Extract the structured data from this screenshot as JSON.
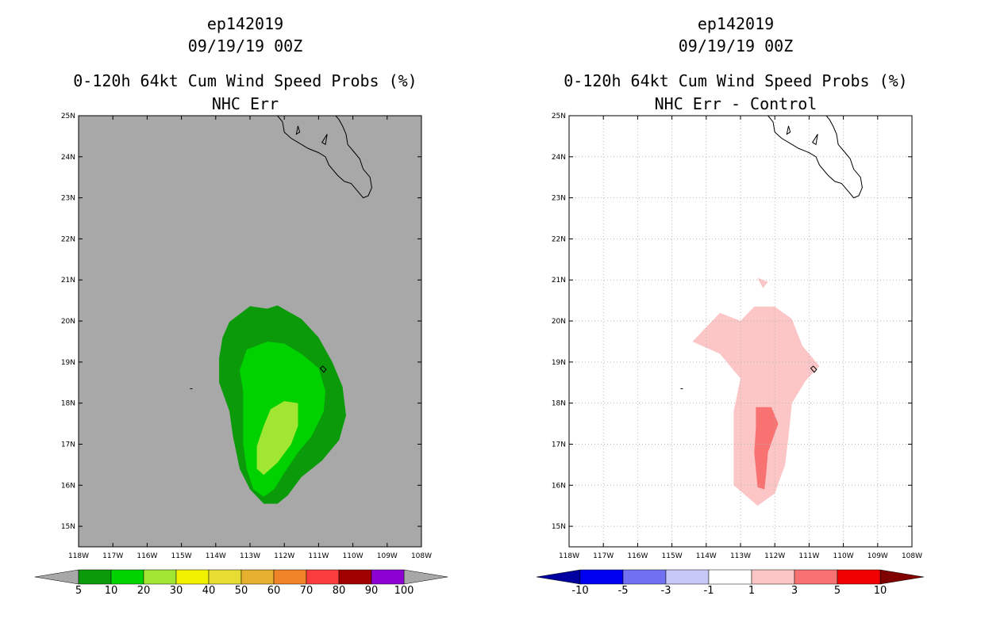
{
  "colors": {
    "ocean_left": "#a8a8a8",
    "green_dark": "#0a9a0a",
    "green_mid": "#00d200",
    "green_light": "#a0e632",
    "pink_light": "#fcc6c6",
    "pink_dark": "#f87272",
    "grid": "#b4b4b4"
  },
  "chart_data": [
    {
      "type": "contour-map",
      "storm": "ep142019",
      "date": "09/19/19 00Z",
      "title": "0-120h 64kt Cum Wind Speed Probs (%)",
      "subtitle": "NHC Err",
      "lon_range": [
        -118,
        -108
      ],
      "lat_range": [
        14.5,
        25
      ],
      "x_ticks": [
        "118W",
        "117W",
        "116W",
        "115W",
        "114W",
        "113W",
        "112W",
        "111W",
        "110W",
        "109W",
        "108W"
      ],
      "y_ticks": [
        "15N",
        "16N",
        "17N",
        "18N",
        "19N",
        "20N",
        "21N",
        "22N",
        "23N",
        "24N",
        "25N"
      ],
      "grid": false,
      "contours": [
        {
          "level": "5-10%",
          "color": "#0a9a0a",
          "polygon": [
            [
              -113.6,
              19.98
            ],
            [
              -113.0,
              20.36
            ],
            [
              -112.5,
              20.3
            ],
            [
              -112.2,
              20.38
            ],
            [
              -111.5,
              20.05
            ],
            [
              -111.0,
              19.6
            ],
            [
              -110.6,
              19.0
            ],
            [
              -110.3,
              18.4
            ],
            [
              -110.2,
              17.7
            ],
            [
              -110.4,
              17.1
            ],
            [
              -110.9,
              16.6
            ],
            [
              -111.5,
              16.2
            ],
            [
              -111.9,
              15.75
            ],
            [
              -112.2,
              15.55
            ],
            [
              -112.6,
              15.55
            ],
            [
              -113.0,
              15.9
            ],
            [
              -113.3,
              16.4
            ],
            [
              -113.5,
              17.2
            ],
            [
              -113.6,
              17.8
            ],
            [
              -113.9,
              18.5
            ],
            [
              -113.9,
              19.1
            ],
            [
              -113.8,
              19.6
            ]
          ]
        },
        {
          "level": "10-20%",
          "color": "#00d200",
          "polygon": [
            [
              -113.1,
              19.3
            ],
            [
              -112.5,
              19.5
            ],
            [
              -112.0,
              19.45
            ],
            [
              -111.5,
              19.2
            ],
            [
              -111.0,
              18.85
            ],
            [
              -110.8,
              18.3
            ],
            [
              -110.85,
              17.8
            ],
            [
              -111.2,
              17.2
            ],
            [
              -111.6,
              16.8
            ],
            [
              -112.0,
              16.3
            ],
            [
              -112.3,
              15.9
            ],
            [
              -112.6,
              15.72
            ],
            [
              -112.9,
              15.9
            ],
            [
              -113.1,
              16.4
            ],
            [
              -113.2,
              17.0
            ],
            [
              -113.2,
              17.7
            ],
            [
              -113.2,
              18.3
            ],
            [
              -113.3,
              18.8
            ]
          ]
        },
        {
          "level": "20-30%",
          "color": "#a0e632",
          "polygon": [
            [
              -112.4,
              17.85
            ],
            [
              -112.0,
              18.05
            ],
            [
              -111.6,
              18.0
            ],
            [
              -111.6,
              17.45
            ],
            [
              -111.8,
              17.0
            ],
            [
              -112.2,
              16.55
            ],
            [
              -112.6,
              16.25
            ],
            [
              -112.8,
              16.4
            ],
            [
              -112.8,
              16.95
            ],
            [
              -112.6,
              17.45
            ]
          ]
        }
      ],
      "colorbar": {
        "labels": [
          "5",
          "10",
          "20",
          "30",
          "40",
          "50",
          "60",
          "70",
          "80",
          "90",
          "100"
        ],
        "colors": [
          "#0a9a0a",
          "#00d200",
          "#a0e632",
          "#f0f000",
          "#e6dc32",
          "#e6af2d",
          "#f08228",
          "#fa3c3c",
          "#a00000",
          "#8c00d2"
        ],
        "end_colors": [
          "#a8a8a8",
          "#a8a8a8"
        ]
      }
    },
    {
      "type": "contour-map",
      "storm": "ep142019",
      "date": "09/19/19 00Z",
      "title": "0-120h 64kt Cum Wind Speed Probs (%)",
      "subtitle": "NHC Err - Control",
      "lon_range": [
        -118,
        -108
      ],
      "lat_range": [
        14.5,
        25
      ],
      "x_ticks": [
        "118W",
        "117W",
        "116W",
        "115W",
        "114W",
        "113W",
        "112W",
        "111W",
        "110W",
        "109W",
        "108W"
      ],
      "y_ticks": [
        "15N",
        "16N",
        "17N",
        "18N",
        "19N",
        "20N",
        "21N",
        "22N",
        "23N",
        "24N",
        "25N"
      ],
      "grid": true,
      "contours": [
        {
          "level": "1-3",
          "color": "#fcc6c6",
          "polygon": [
            [
              -114.4,
              19.5
            ],
            [
              -113.6,
              20.2
            ],
            [
              -113.0,
              20.0
            ],
            [
              -112.6,
              20.35
            ],
            [
              -112.0,
              20.35
            ],
            [
              -111.5,
              20.05
            ],
            [
              -111.2,
              19.4
            ],
            [
              -110.7,
              18.9
            ],
            [
              -111.1,
              18.55
            ],
            [
              -111.5,
              18.0
            ],
            [
              -111.6,
              17.2
            ],
            [
              -111.7,
              16.5
            ],
            [
              -112.0,
              15.8
            ],
            [
              -112.5,
              15.5
            ],
            [
              -113.2,
              16.0
            ],
            [
              -113.2,
              16.8
            ],
            [
              -113.2,
              17.8
            ],
            [
              -113.0,
              18.6
            ],
            [
              -113.6,
              19.2
            ]
          ]
        },
        {
          "level": "1-3",
          "color": "#fcc6c6",
          "polygon": [
            [
              -112.5,
              21.05
            ],
            [
              -112.2,
              20.95
            ],
            [
              -112.35,
              20.8
            ]
          ]
        },
        {
          "level": "3-5",
          "color": "#f87272",
          "polygon": [
            [
              -112.55,
              17.9
            ],
            [
              -112.1,
              17.9
            ],
            [
              -111.9,
              17.5
            ],
            [
              -112.2,
              16.8
            ],
            [
              -112.25,
              16.3
            ],
            [
              -112.3,
              15.9
            ],
            [
              -112.5,
              15.95
            ],
            [
              -112.6,
              16.8
            ],
            [
              -112.55,
              17.4
            ]
          ]
        }
      ],
      "colorbar": {
        "labels": [
          "-10",
          "-5",
          "-3",
          "-1",
          "1",
          "3",
          "5",
          "10"
        ],
        "colors": [
          "#0000f0",
          "#7070f0",
          "#c8c8f8",
          "#ffffff",
          "#fcc6c6",
          "#f87272",
          "#f00000"
        ],
        "end_colors": [
          "#0000a0",
          "#800000"
        ]
      }
    }
  ]
}
